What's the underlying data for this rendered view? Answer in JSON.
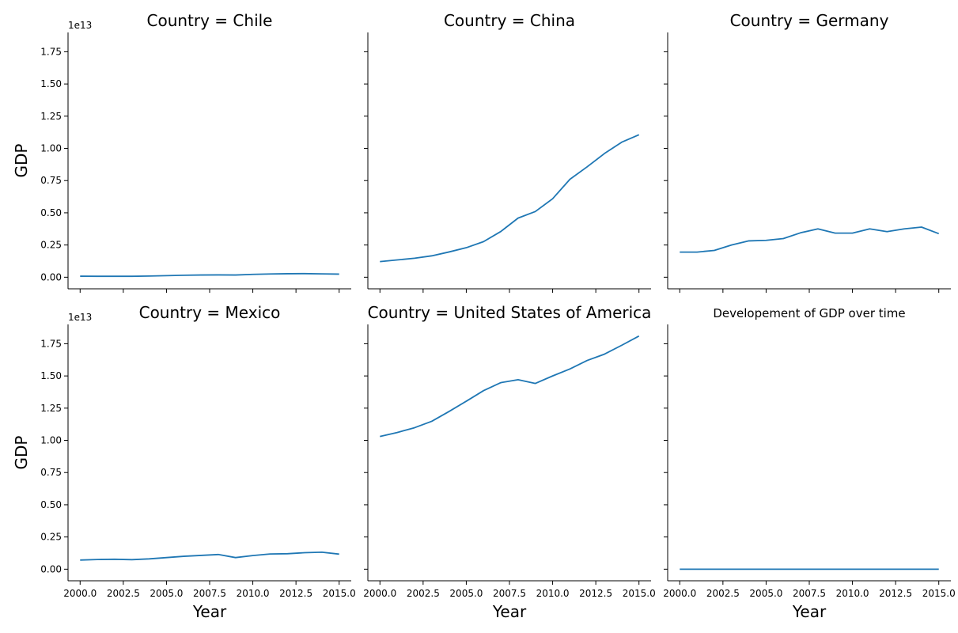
{
  "chart_data": {
    "type": "line",
    "layout": "facet-grid 2x3, shared axes",
    "x": [
      2000,
      2001,
      2002,
      2003,
      2004,
      2005,
      2006,
      2007,
      2008,
      2009,
      2010,
      2011,
      2012,
      2013,
      2014,
      2015
    ],
    "xlabel": "Year",
    "ylabel": "GDP",
    "xlim": [
      1999.3,
      2015.7
    ],
    "ylim": [
      -0.09,
      1.9
    ],
    "y_scale_label": "1e13",
    "x_ticks": [
      2000.0,
      2002.5,
      2005.0,
      2007.5,
      2010.0,
      2012.5,
      2015.0
    ],
    "x_tick_labels": [
      "2000.0",
      "2002.5",
      "2005.0",
      "2007.5",
      "2010.0",
      "2012.5",
      "2015.0"
    ],
    "y_ticks": [
      0.0,
      0.25,
      0.5,
      0.75,
      1.0,
      1.25,
      1.5,
      1.75
    ],
    "y_tick_labels": [
      "0.00",
      "0.25",
      "0.50",
      "0.75",
      "1.00",
      "1.25",
      "1.50",
      "1.75"
    ],
    "color": "#1f77b4",
    "grid": false,
    "panels": [
      {
        "title": "Country = Chile",
        "values": [
          0.008,
          0.007,
          0.007,
          0.007,
          0.009,
          0.012,
          0.015,
          0.017,
          0.018,
          0.017,
          0.022,
          0.025,
          0.027,
          0.028,
          0.026,
          0.024
        ]
      },
      {
        "title": "Country = China",
        "values": [
          0.121,
          0.134,
          0.147,
          0.166,
          0.196,
          0.229,
          0.276,
          0.355,
          0.459,
          0.51,
          0.609,
          0.76,
          0.857,
          0.96,
          1.048,
          1.106
        ]
      },
      {
        "title": "Country = Germany",
        "values": [
          0.195,
          0.195,
          0.208,
          0.25,
          0.282,
          0.286,
          0.3,
          0.345,
          0.375,
          0.342,
          0.342,
          0.375,
          0.354,
          0.375,
          0.389,
          0.338
        ]
      },
      {
        "title": "Country = Mexico",
        "values": [
          0.071,
          0.075,
          0.077,
          0.074,
          0.08,
          0.09,
          0.1,
          0.107,
          0.114,
          0.09,
          0.106,
          0.118,
          0.12,
          0.128,
          0.132,
          0.117
        ]
      },
      {
        "title": "Country = United States of America",
        "values": [
          1.03,
          1.061,
          1.098,
          1.148,
          1.224,
          1.304,
          1.386,
          1.448,
          1.471,
          1.442,
          1.5,
          1.554,
          1.62,
          1.669,
          1.738,
          1.81
        ]
      },
      {
        "title": "Developement of GDP over time",
        "values": [
          0.0,
          0.0,
          0.0,
          0.0,
          0.0,
          0.0,
          0.0,
          0.0,
          0.0,
          0.0,
          0.0,
          0.0,
          0.0,
          0.0,
          0.0,
          0.0
        ]
      }
    ]
  }
}
